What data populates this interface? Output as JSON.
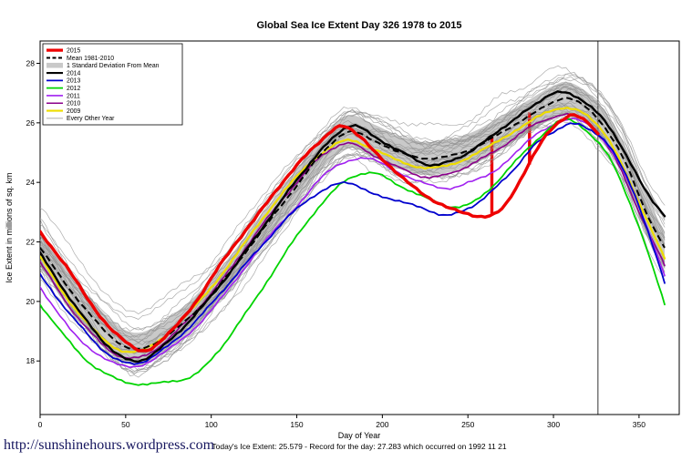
{
  "title": "Global Sea Ice Extent Day 326 1978 to 2015",
  "footer": {
    "link": "http://sunshinehours.wordpress.com",
    "status": "Today's Ice Extent: 25.579 - Record for the day: 27.283 which occurred on 1992 11 21"
  },
  "chart_data": {
    "type": "line",
    "title": "Global Sea Ice Extent Day 326 1978 to 2015",
    "xlabel": "Day of Year",
    "ylabel": "Ice Extent in millions of sq. km",
    "xlim": [
      0,
      373.5
    ],
    "ylim": [
      16.2,
      28.75
    ],
    "xticks": [
      0,
      50,
      100,
      150,
      200,
      250,
      300,
      350
    ],
    "yticks": [
      18,
      20,
      22,
      24,
      26,
      28
    ],
    "grid": false,
    "legend_position": "top-left",
    "marker_day": 326,
    "todays_extent": 25.579,
    "record_value": 27.283,
    "record_date": "1992 11 21",
    "band": {
      "label": "1 Standard Deviation From Mean",
      "halfwidth": 0.55,
      "color": "#c9c9c9"
    },
    "mean": {
      "label": "Mean 1981-2010",
      "color": "#000000",
      "dashed": true,
      "width": 2,
      "points": [
        [
          0,
          21.8
        ],
        [
          20,
          20.2
        ],
        [
          40,
          18.9
        ],
        [
          55,
          18.4
        ],
        [
          70,
          18.7
        ],
        [
          90,
          19.6
        ],
        [
          110,
          20.9
        ],
        [
          130,
          22.4
        ],
        [
          150,
          23.9
        ],
        [
          165,
          25.0
        ],
        [
          180,
          25.7
        ],
        [
          195,
          25.4
        ],
        [
          210,
          25.0
        ],
        [
          225,
          24.8
        ],
        [
          240,
          24.9
        ],
        [
          255,
          25.2
        ],
        [
          270,
          25.7
        ],
        [
          285,
          26.2
        ],
        [
          300,
          26.7
        ],
        [
          310,
          26.8
        ],
        [
          325,
          26.2
        ],
        [
          340,
          24.9
        ],
        [
          355,
          22.9
        ],
        [
          365,
          21.8
        ]
      ]
    },
    "series": [
      {
        "name": "2015",
        "color": "#ee0000",
        "width": 3.4,
        "points": [
          [
            0,
            22.3
          ],
          [
            15,
            21.2
          ],
          [
            30,
            19.9
          ],
          [
            45,
            18.9
          ],
          [
            60,
            18.35
          ],
          [
            75,
            18.9
          ],
          [
            90,
            19.9
          ],
          [
            105,
            21.2
          ],
          [
            120,
            22.4
          ],
          [
            135,
            23.5
          ],
          [
            150,
            24.6
          ],
          [
            163,
            25.3
          ],
          [
            175,
            25.9
          ],
          [
            185,
            25.6
          ],
          [
            200,
            24.8
          ],
          [
            215,
            24.0
          ],
          [
            230,
            23.4
          ],
          [
            245,
            23.0
          ],
          [
            260,
            22.85
          ],
          [
            270,
            23.1
          ],
          [
            278,
            23.8
          ],
          [
            288,
            24.9
          ],
          [
            296,
            25.6
          ],
          [
            305,
            26.1
          ],
          [
            312,
            26.3
          ],
          [
            320,
            26.0
          ],
          [
            326,
            25.58
          ]
        ],
        "spikes": [
          {
            "day": 264,
            "from": 22.95,
            "to": 25.55
          },
          {
            "day": 286,
            "from": 24.6,
            "to": 26.35
          }
        ]
      },
      {
        "name": "2014",
        "color": "#000000",
        "width": 2.4,
        "points": [
          [
            0,
            21.6
          ],
          [
            20,
            19.9
          ],
          [
            40,
            18.5
          ],
          [
            55,
            18.0
          ],
          [
            70,
            18.4
          ],
          [
            90,
            19.5
          ],
          [
            110,
            20.9
          ],
          [
            130,
            22.5
          ],
          [
            150,
            24.1
          ],
          [
            168,
            25.3
          ],
          [
            182,
            25.9
          ],
          [
            196,
            25.5
          ],
          [
            212,
            25.0
          ],
          [
            228,
            24.6
          ],
          [
            243,
            24.8
          ],
          [
            258,
            25.3
          ],
          [
            272,
            25.9
          ],
          [
            287,
            26.5
          ],
          [
            300,
            27.0
          ],
          [
            312,
            26.9
          ],
          [
            325,
            26.4
          ],
          [
            340,
            25.2
          ],
          [
            355,
            23.6
          ],
          [
            365,
            22.9
          ]
        ]
      },
      {
        "name": "2013",
        "color": "#0000cd",
        "width": 1.8,
        "points": [
          [
            0,
            20.9
          ],
          [
            20,
            19.4
          ],
          [
            40,
            18.2
          ],
          [
            55,
            17.9
          ],
          [
            70,
            18.3
          ],
          [
            90,
            19.3
          ],
          [
            110,
            20.6
          ],
          [
            130,
            21.9
          ],
          [
            150,
            23.1
          ],
          [
            165,
            23.7
          ],
          [
            180,
            24.0
          ],
          [
            195,
            23.6
          ],
          [
            210,
            23.4
          ],
          [
            225,
            23.1
          ],
          [
            238,
            22.9
          ],
          [
            250,
            23.1
          ],
          [
            262,
            23.6
          ],
          [
            275,
            24.3
          ],
          [
            288,
            25.2
          ],
          [
            300,
            25.7
          ],
          [
            310,
            26.0
          ],
          [
            320,
            25.8
          ],
          [
            332,
            25.3
          ],
          [
            345,
            23.9
          ],
          [
            355,
            22.4
          ],
          [
            365,
            20.6
          ]
        ]
      },
      {
        "name": "2012",
        "color": "#00d400",
        "width": 1.8,
        "points": [
          [
            0,
            19.9
          ],
          [
            15,
            18.8
          ],
          [
            30,
            17.9
          ],
          [
            45,
            17.4
          ],
          [
            60,
            17.2
          ],
          [
            75,
            17.3
          ],
          [
            90,
            17.5
          ],
          [
            105,
            18.4
          ],
          [
            120,
            19.6
          ],
          [
            135,
            20.9
          ],
          [
            150,
            22.2
          ],
          [
            165,
            23.3
          ],
          [
            180,
            24.1
          ],
          [
            195,
            24.3
          ],
          [
            210,
            23.9
          ],
          [
            225,
            23.5
          ],
          [
            240,
            23.2
          ],
          [
            252,
            23.3
          ],
          [
            265,
            23.9
          ],
          [
            278,
            24.7
          ],
          [
            290,
            25.4
          ],
          [
            302,
            26.0
          ],
          [
            310,
            26.1
          ],
          [
            322,
            25.6
          ],
          [
            335,
            24.6
          ],
          [
            350,
            22.5
          ],
          [
            365,
            19.9
          ]
        ]
      },
      {
        "name": "2011",
        "color": "#a020f0",
        "width": 1.6,
        "points": [
          [
            0,
            20.5
          ],
          [
            20,
            18.9
          ],
          [
            40,
            18.0
          ],
          [
            55,
            17.8
          ],
          [
            70,
            18.2
          ],
          [
            90,
            19.1
          ],
          [
            110,
            20.4
          ],
          [
            130,
            21.9
          ],
          [
            150,
            23.2
          ],
          [
            165,
            24.2
          ],
          [
            178,
            24.7
          ],
          [
            192,
            24.8
          ],
          [
            207,
            24.4
          ],
          [
            222,
            24.0
          ],
          [
            237,
            23.8
          ],
          [
            250,
            24.0
          ],
          [
            263,
            24.3
          ],
          [
            276,
            24.9
          ],
          [
            290,
            25.6
          ],
          [
            303,
            26.0
          ],
          [
            313,
            26.1
          ],
          [
            325,
            25.7
          ],
          [
            338,
            24.7
          ],
          [
            352,
            22.9
          ],
          [
            365,
            20.9
          ]
        ]
      },
      {
        "name": "2010",
        "color": "#8b008b",
        "width": 1.6,
        "points": [
          [
            0,
            21.3
          ],
          [
            20,
            19.6
          ],
          [
            40,
            18.4
          ],
          [
            55,
            18.1
          ],
          [
            70,
            18.5
          ],
          [
            90,
            19.6
          ],
          [
            110,
            21.0
          ],
          [
            130,
            22.6
          ],
          [
            150,
            24.0
          ],
          [
            165,
            24.9
          ],
          [
            180,
            25.3
          ],
          [
            195,
            24.9
          ],
          [
            210,
            24.5
          ],
          [
            225,
            24.2
          ],
          [
            240,
            24.3
          ],
          [
            255,
            24.7
          ],
          [
            268,
            25.1
          ],
          [
            282,
            25.7
          ],
          [
            295,
            26.1
          ],
          [
            308,
            26.3
          ],
          [
            320,
            26.0
          ],
          [
            335,
            24.9
          ],
          [
            350,
            23.0
          ],
          [
            365,
            21.2
          ]
        ]
      },
      {
        "name": "2009",
        "color": "#eedd00",
        "width": 2.2,
        "points": [
          [
            0,
            21.5
          ],
          [
            20,
            19.8
          ],
          [
            40,
            18.6
          ],
          [
            55,
            18.3
          ],
          [
            70,
            18.7
          ],
          [
            90,
            19.8
          ],
          [
            110,
            21.2
          ],
          [
            130,
            22.8
          ],
          [
            150,
            24.2
          ],
          [
            165,
            25.0
          ],
          [
            180,
            25.4
          ],
          [
            195,
            25.1
          ],
          [
            210,
            24.7
          ],
          [
            225,
            24.5
          ],
          [
            240,
            24.6
          ],
          [
            255,
            25.0
          ],
          [
            268,
            25.4
          ],
          [
            282,
            25.9
          ],
          [
            295,
            26.3
          ],
          [
            308,
            26.5
          ],
          [
            320,
            26.2
          ],
          [
            335,
            25.2
          ],
          [
            350,
            23.3
          ],
          [
            365,
            21.5
          ]
        ]
      }
    ],
    "background": {
      "label": "Every Other Year",
      "color": "#909090",
      "count": 28,
      "spread": 1.15,
      "seed": 42
    },
    "legend": {
      "items": [
        {
          "label": "2015",
          "swatch": "line",
          "color": "#ee0000",
          "width": 3.2
        },
        {
          "label": "Mean 1981-2010",
          "swatch": "dash",
          "color": "#000000",
          "width": 2
        },
        {
          "label": "1 Standard Deviation From Mean",
          "swatch": "box",
          "color": "#c9c9c9",
          "width": 1
        },
        {
          "label": "2014",
          "swatch": "line",
          "color": "#000000",
          "width": 2.2
        },
        {
          "label": "2013",
          "swatch": "line",
          "color": "#0000cd",
          "width": 1.8
        },
        {
          "label": "2012",
          "swatch": "line",
          "color": "#00d400",
          "width": 1.8
        },
        {
          "label": "2011",
          "swatch": "line",
          "color": "#a020f0",
          "width": 1.6
        },
        {
          "label": "2010",
          "swatch": "line",
          "color": "#8b008b",
          "width": 1.6
        },
        {
          "label": "2009",
          "swatch": "line",
          "color": "#eedd00",
          "width": 2.2
        },
        {
          "label": "Every Other Year",
          "swatch": "line",
          "color": "#909090",
          "width": 0.8
        }
      ]
    }
  }
}
